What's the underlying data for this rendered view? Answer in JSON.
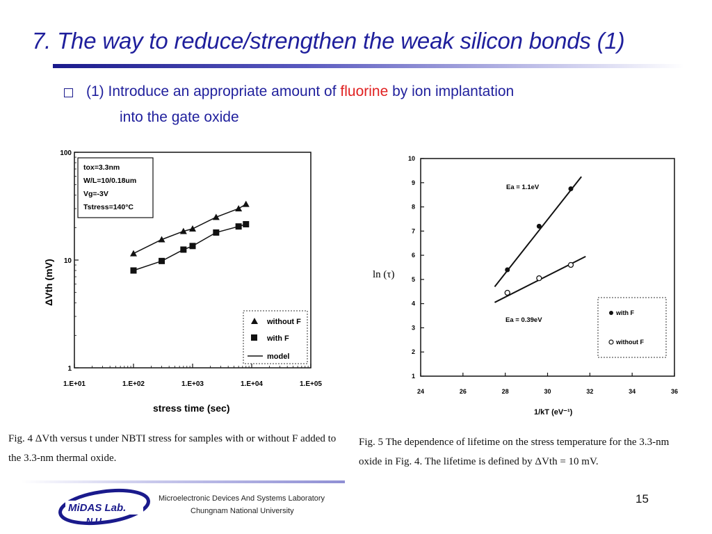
{
  "slide": {
    "title": "7. The way to reduce/strengthen the weak silicon bonds (1)",
    "bullet": {
      "prefix": "(1) ",
      "text_before": "Introduce an appropriate amount of ",
      "highlight": "fluorine",
      "text_after": " by ion implantation",
      "line2": "into the gate oxide"
    },
    "captions": {
      "fig4_line1": "Fig. 4 ΔVth versus t under NBTI stress for samples with or without F added to",
      "fig4_line2": "the 3.3-nm thermal oxide.",
      "fig5_line1": "Fig. 5 The dependence of lifetime on the stress temperature for the 3.3-nm",
      "fig5_line2": "oxide in Fig. 4. The lifetime is defined by ΔVth = 10 mV."
    },
    "footer": {
      "logo_line1": "MiDAS Lab.",
      "logo_line2": ".N.U",
      "lab_name": "Microelectronic Devices And Systems Laboratory",
      "university": "Chungnam National University",
      "page_number": "15"
    },
    "colors": {
      "title": "#1f1f9c",
      "highlight": "#e02020",
      "logo": "#1a1a8c"
    }
  },
  "chart_data": [
    {
      "type": "scatter",
      "xlabel": "stress time (sec)",
      "ylabel": "ΔVth (mV)",
      "x_scale": "log",
      "y_scale": "log",
      "xlim": [
        10,
        100000
      ],
      "ylim": [
        1,
        100
      ],
      "x_ticks": [
        "1.E+01",
        "1.E+02",
        "1.E+03",
        "1.E+04",
        "1.E+05"
      ],
      "y_ticks": [
        "100",
        "10",
        "1"
      ],
      "conditions": [
        "tox=3.3nm",
        "W/L=10/0.18um",
        "Vg=-3V",
        "Tstress=140°C"
      ],
      "legend_position": "bottom-right",
      "legend_labels": [
        "without F",
        "with F",
        "model"
      ],
      "series": [
        {
          "name": "without F",
          "marker": "triangle",
          "x": [
            100,
            300,
            700,
            1000,
            2500,
            6000,
            8000
          ],
          "y": [
            11.5,
            15.5,
            18.5,
            19.5,
            25,
            30,
            33
          ]
        },
        {
          "name": "with F",
          "marker": "square",
          "x": [
            100,
            300,
            700,
            1000,
            2500,
            6000,
            8000
          ],
          "y": [
            8,
            9.8,
            12.5,
            13.5,
            18,
            20.5,
            21.5
          ]
        }
      ]
    },
    {
      "type": "scatter",
      "xlabel": "1/kT (eV⁻¹)",
      "ylabel": "ln (τ)",
      "xlim": [
        24,
        36
      ],
      "ylim": [
        1,
        10
      ],
      "x_ticks": [
        "24",
        "26",
        "28",
        "30",
        "32",
        "34",
        "36"
      ],
      "y_ticks": [
        "10",
        "9",
        "8",
        "7",
        "6",
        "5",
        "4",
        "3",
        "2",
        "1"
      ],
      "legend_position": "bottom-right",
      "legend_labels": [
        "with F",
        "without F"
      ],
      "annotations": [
        "Ea = 1.1eV",
        "Ea = 0.39eV"
      ],
      "series": [
        {
          "name": "with F",
          "marker": "filled-circle",
          "x": [
            28.1,
            29.6,
            31.1
          ],
          "y": [
            5.4,
            7.2,
            8.75
          ],
          "fit_line": {
            "x": [
              27.5,
              31.6
            ],
            "y": [
              4.7,
              9.25
            ]
          }
        },
        {
          "name": "without F",
          "marker": "open-circle",
          "x": [
            28.1,
            29.6,
            31.1
          ],
          "y": [
            4.45,
            5.05,
            5.6
          ],
          "fit_line": {
            "x": [
              27.5,
              31.8
            ],
            "y": [
              4.05,
              5.95
            ]
          }
        }
      ]
    }
  ]
}
